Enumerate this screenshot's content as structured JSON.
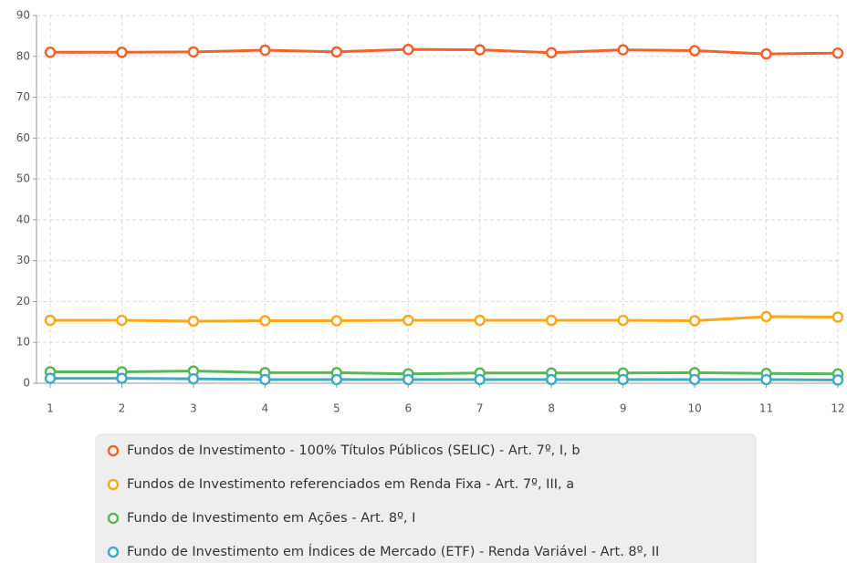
{
  "chart_data": {
    "type": "line",
    "categories": [
      "1",
      "2",
      "3",
      "4",
      "5",
      "6",
      "7",
      "8",
      "9",
      "10",
      "11",
      "12"
    ],
    "series": [
      {
        "name": "Fundos de Investimento - 100% Títulos Públicos (SELIC) - Art. 7º, I, b",
        "color": "#f3622d",
        "values": [
          81.0,
          81.0,
          81.1,
          81.5,
          81.1,
          81.7,
          81.6,
          80.9,
          81.6,
          81.4,
          80.6,
          80.8
        ]
      },
      {
        "name": "Fundos de Investimento referenciados em Renda Fixa - Art. 7º, III, a",
        "color": "#fba71b",
        "values": [
          15.4,
          15.4,
          15.2,
          15.3,
          15.3,
          15.4,
          15.4,
          15.4,
          15.4,
          15.3,
          16.3,
          16.2
        ]
      },
      {
        "name": "Fundo de Investimento em Ações - Art. 8º, I",
        "color": "#57b757",
        "values": [
          2.8,
          2.8,
          3.0,
          2.6,
          2.6,
          2.3,
          2.5,
          2.5,
          2.5,
          2.6,
          2.4,
          2.3
        ]
      },
      {
        "name": "Fundo de Investimento em Índices de Mercado (ETF) - Renda Variável - Art. 8º, II",
        "color": "#41a9c9",
        "values": [
          1.2,
          1.2,
          1.1,
          0.9,
          0.9,
          0.9,
          0.9,
          0.9,
          0.9,
          0.9,
          0.9,
          0.8
        ]
      }
    ],
    "ylim": [
      0,
      90
    ],
    "yticks": [
      0,
      10,
      20,
      30,
      40,
      50,
      60,
      70,
      80,
      90
    ],
    "grid": true,
    "legend": "bottom"
  }
}
